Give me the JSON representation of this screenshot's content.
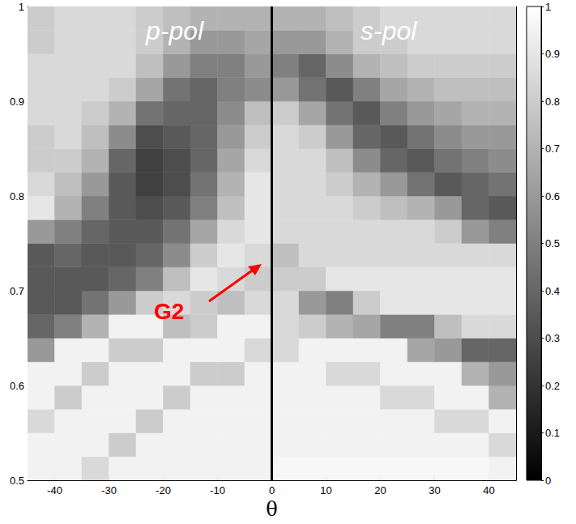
{
  "chart_data": {
    "type": "heatmap",
    "x_label": "θ",
    "panel_labels": [
      "p-pol",
      "s-pol"
    ],
    "annotation": "G2",
    "divider_x": 0,
    "xlim": [
      -45,
      45
    ],
    "xticks": [
      -40,
      -30,
      -20,
      -10,
      0,
      10,
      20,
      30,
      40
    ],
    "ylim": [
      0.5,
      1
    ],
    "yticks": [
      0.5,
      0.6,
      0.7,
      0.8,
      0.9,
      1
    ],
    "x_edges": [
      -45,
      -40,
      -35,
      -30,
      -25,
      -20,
      -15,
      -10,
      -5,
      0,
      5,
      10,
      15,
      20,
      25,
      30,
      35,
      40,
      45
    ],
    "y_edges": [
      0.5,
      0.525,
      0.55,
      0.575,
      0.6,
      0.625,
      0.65,
      0.675,
      0.7,
      0.725,
      0.75,
      0.775,
      0.8,
      0.825,
      0.85,
      0.875,
      0.9,
      0.925,
      0.95,
      0.975,
      1
    ],
    "cells": [
      [
        0.95,
        0.95,
        0.85,
        0.95,
        0.95,
        0.95,
        0.95,
        0.95,
        0.95,
        0.97,
        0.97,
        0.97,
        0.97,
        0.97,
        0.97,
        0.97,
        0.97,
        0.95
      ],
      [
        0.95,
        0.95,
        0.95,
        0.8,
        0.95,
        0.95,
        0.95,
        0.95,
        0.95,
        0.95,
        0.95,
        0.95,
        0.95,
        0.95,
        0.95,
        0.95,
        0.95,
        0.85
      ],
      [
        0.85,
        0.95,
        0.95,
        0.95,
        0.8,
        0.95,
        0.95,
        0.95,
        0.95,
        0.95,
        0.95,
        0.95,
        0.95,
        0.95,
        0.95,
        0.85,
        0.85,
        0.95
      ],
      [
        0.95,
        0.8,
        0.95,
        0.95,
        0.95,
        0.8,
        0.95,
        0.95,
        0.95,
        0.95,
        0.95,
        0.95,
        0.95,
        0.85,
        0.85,
        0.95,
        0.95,
        0.7
      ],
      [
        0.95,
        0.95,
        0.8,
        0.95,
        0.95,
        0.95,
        0.8,
        0.8,
        0.95,
        0.95,
        0.95,
        0.85,
        0.85,
        0.95,
        0.95,
        0.95,
        0.7,
        0.6
      ],
      [
        0.6,
        0.95,
        0.95,
        0.8,
        0.8,
        0.95,
        0.95,
        0.95,
        0.85,
        0.85,
        0.95,
        0.95,
        0.95,
        0.95,
        0.65,
        0.6,
        0.4,
        0.4
      ],
      [
        0.4,
        0.5,
        0.7,
        0.95,
        0.95,
        0.75,
        0.8,
        0.95,
        0.95,
        0.85,
        0.8,
        0.7,
        0.65,
        0.5,
        0.5,
        0.75,
        0.85,
        0.85
      ],
      [
        0.35,
        0.35,
        0.45,
        0.6,
        0.8,
        0.85,
        0.8,
        0.75,
        0.85,
        0.85,
        0.6,
        0.5,
        0.8,
        0.9,
        0.9,
        0.9,
        0.9,
        0.9
      ],
      [
        0.35,
        0.35,
        0.35,
        0.4,
        0.5,
        0.75,
        0.9,
        0.85,
        0.8,
        0.8,
        0.8,
        0.9,
        0.9,
        0.9,
        0.9,
        0.9,
        0.9,
        0.9
      ],
      [
        0.35,
        0.4,
        0.35,
        0.35,
        0.4,
        0.55,
        0.8,
        0.9,
        0.85,
        0.75,
        0.85,
        0.85,
        0.85,
        0.85,
        0.85,
        0.85,
        0.85,
        0.85
      ],
      [
        0.6,
        0.5,
        0.4,
        0.35,
        0.35,
        0.45,
        0.65,
        0.85,
        0.9,
        0.85,
        0.85,
        0.85,
        0.85,
        0.85,
        0.85,
        0.8,
        0.6,
        0.5
      ],
      [
        0.9,
        0.7,
        0.5,
        0.35,
        0.3,
        0.35,
        0.5,
        0.75,
        0.9,
        0.85,
        0.85,
        0.85,
        0.8,
        0.75,
        0.7,
        0.6,
        0.4,
        0.35
      ],
      [
        0.85,
        0.75,
        0.6,
        0.35,
        0.25,
        0.3,
        0.45,
        0.7,
        0.9,
        0.85,
        0.85,
        0.8,
        0.7,
        0.6,
        0.45,
        0.35,
        0.4,
        0.45
      ],
      [
        0.8,
        0.8,
        0.7,
        0.4,
        0.25,
        0.3,
        0.4,
        0.65,
        0.85,
        0.85,
        0.85,
        0.75,
        0.55,
        0.4,
        0.35,
        0.45,
        0.5,
        0.55
      ],
      [
        0.8,
        0.85,
        0.75,
        0.55,
        0.3,
        0.35,
        0.4,
        0.6,
        0.8,
        0.85,
        0.8,
        0.6,
        0.4,
        0.35,
        0.45,
        0.55,
        0.6,
        0.6
      ],
      [
        0.85,
        0.85,
        0.8,
        0.7,
        0.45,
        0.4,
        0.4,
        0.55,
        0.75,
        0.8,
        0.65,
        0.45,
        0.35,
        0.5,
        0.6,
        0.65,
        0.7,
        0.7
      ],
      [
        0.85,
        0.85,
        0.85,
        0.8,
        0.65,
        0.45,
        0.4,
        0.5,
        0.55,
        0.6,
        0.45,
        0.35,
        0.5,
        0.65,
        0.7,
        0.75,
        0.75,
        0.75
      ],
      [
        0.85,
        0.85,
        0.85,
        0.85,
        0.75,
        0.6,
        0.5,
        0.5,
        0.6,
        0.5,
        0.4,
        0.55,
        0.7,
        0.75,
        0.8,
        0.8,
        0.8,
        0.8
      ],
      [
        0.8,
        0.85,
        0.85,
        0.85,
        0.8,
        0.7,
        0.6,
        0.6,
        0.65,
        0.6,
        0.6,
        0.7,
        0.8,
        0.8,
        0.85,
        0.85,
        0.85,
        0.85
      ],
      [
        0.8,
        0.85,
        0.85,
        0.85,
        0.8,
        0.75,
        0.7,
        0.7,
        0.7,
        0.7,
        0.7,
        0.75,
        0.8,
        0.85,
        0.85,
        0.85,
        0.85,
        0.85
      ]
    ],
    "colorbar": {
      "range": [
        0,
        1
      ],
      "ticks": [
        0,
        0.1,
        0.2,
        0.3,
        0.4,
        0.5,
        0.6,
        0.7,
        0.8,
        0.9,
        1
      ]
    }
  }
}
